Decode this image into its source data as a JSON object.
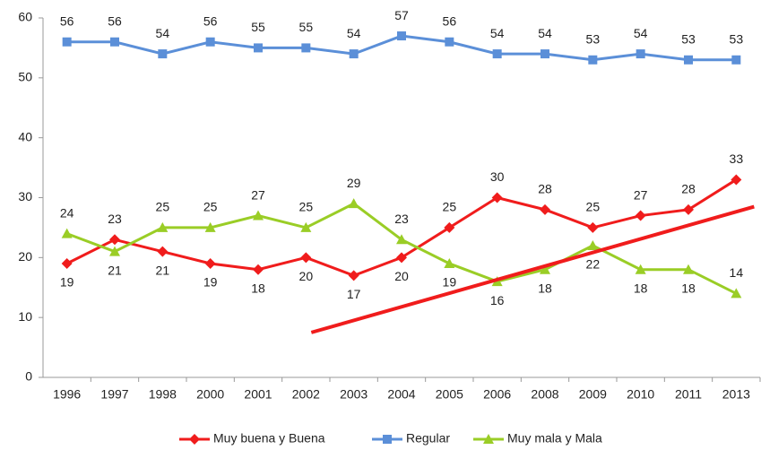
{
  "chart_data": {
    "type": "line",
    "categories": [
      "1996",
      "1997",
      "1998",
      "2000",
      "2001",
      "2002",
      "2003",
      "2004",
      "2005",
      "2006",
      "2008",
      "2009",
      "2010",
      "2011",
      "2013"
    ],
    "series": [
      {
        "name": "Muy buena y Buena",
        "color": "#f01c1c",
        "marker": "diamond",
        "values": [
          19,
          23,
          21,
          19,
          18,
          20,
          17,
          20,
          25,
          30,
          28,
          25,
          27,
          28,
          33
        ]
      },
      {
        "name": "Regular",
        "color": "#5b8fd8",
        "marker": "square",
        "values": [
          56,
          56,
          54,
          56,
          55,
          55,
          54,
          57,
          56,
          54,
          54,
          53,
          54,
          53,
          53
        ]
      },
      {
        "name": "Muy mala y Mala",
        "color": "#9acd26",
        "marker": "triangle",
        "values": [
          24,
          21,
          25,
          25,
          27,
          25,
          29,
          23,
          19,
          16,
          18,
          22,
          18,
          18,
          14
        ]
      }
    ],
    "trend": {
      "categories": [
        "2002",
        "2013"
      ],
      "values": [
        7.5,
        28.5
      ],
      "color": "#f01c1c"
    },
    "ylim": [
      0,
      60
    ],
    "yticks": [
      0,
      10,
      20,
      30,
      40,
      50,
      60
    ],
    "grid": false,
    "legend": "bottom"
  }
}
